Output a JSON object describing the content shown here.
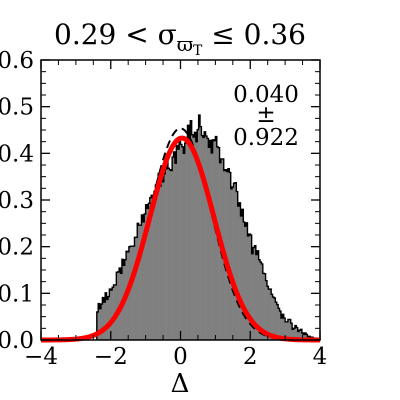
{
  "chart_data": {
    "type": "histogram",
    "title": "0.29 < σ_ϖT ≤ 0.36",
    "title_parts": {
      "prefix": "0.29 < σ",
      "sub": "ϖ",
      "subsub": "T",
      "suffix": " ≤ 0.36"
    },
    "xlabel": "Δ",
    "ylabel": "",
    "xlim": [
      -4,
      4
    ],
    "ylim": [
      0,
      0.6
    ],
    "x_ticks": [
      -4,
      -2,
      0,
      2,
      4
    ],
    "x_tick_labels": [
      "−4",
      "−2",
      "0",
      "2",
      "4"
    ],
    "y_ticks": [
      0.0,
      0.1,
      0.2,
      0.3,
      0.4,
      0.5,
      0.6
    ],
    "y_tick_labels": [
      "0.0",
      "0.1",
      "0.2",
      "0.3",
      "0.4",
      "0.5",
      "0.6"
    ],
    "grid": false,
    "annotation": {
      "mean": "0.040",
      "pm": "±",
      "sigma": "0.922",
      "placement": "top-right"
    },
    "histogram": {
      "name": "",
      "bin_edges_start": -2.4,
      "bin_width": 0.04,
      "values": [
        0.06,
        0.078,
        0.067,
        0.077,
        0.091,
        0.081,
        0.101,
        0.087,
        0.093,
        0.109,
        0.107,
        0.113,
        0.118,
        0.118,
        0.145,
        0.146,
        0.154,
        0.143,
        0.173,
        0.16,
        0.172,
        0.19,
        0.189,
        0.2,
        0.201,
        0.201,
        0.201,
        0.22,
        0.22,
        0.25,
        0.246,
        0.246,
        0.268,
        0.253,
        0.27,
        0.29,
        0.282,
        0.293,
        0.305,
        0.31,
        0.295,
        0.318,
        0.332,
        0.337,
        0.357,
        0.33,
        0.346,
        0.339,
        0.356,
        0.366,
        0.395,
        0.368,
        0.365,
        0.363,
        0.392,
        0.403,
        0.379,
        0.417,
        0.409,
        0.428,
        0.419,
        0.414,
        0.4,
        0.422,
        0.434,
        0.46,
        0.417,
        0.47,
        0.44,
        0.435,
        0.445,
        0.425,
        0.451,
        0.482,
        0.457,
        0.438,
        0.434,
        0.446,
        0.437,
        0.432,
        0.413,
        0.428,
        0.401,
        0.429,
        0.427,
        0.436,
        0.414,
        0.412,
        0.38,
        0.388,
        0.388,
        0.363,
        0.365,
        0.361,
        0.367,
        0.359,
        0.324,
        0.328,
        0.336,
        0.337,
        0.318,
        0.287,
        0.294,
        0.266,
        0.28,
        0.253,
        0.244,
        0.251,
        0.223,
        0.227,
        0.225,
        0.185,
        0.198,
        0.202,
        0.183,
        0.191,
        0.172,
        0.167,
        0.163,
        0.143,
        0.142,
        0.127,
        0.115,
        0.109,
        0.109,
        0.098,
        0.092,
        0.09,
        0.081,
        0.076,
        0.068,
        0.062,
        0.047,
        0.055,
        0.047,
        0.039,
        0.039,
        0.044,
        0.044,
        0.036,
        0.023,
        0.025,
        0.031,
        0.027,
        0.018,
        0.021,
        0.023,
        0.015,
        0.012,
        0.015,
        0.012,
        0.007,
        0.008,
        0.004,
        0.006,
        0.003,
        0.004,
        0.002,
        0.001,
        0.001
      ],
      "color": "#808080",
      "edge_color": "#000000"
    },
    "fit_curve": {
      "name": "",
      "type": "gaussian",
      "mean": 0.04,
      "sigma": 0.922,
      "color": "#ff0000"
    },
    "reference_curve": {
      "name": "",
      "type": "gaussian",
      "mean": 0.0,
      "sigma": 0.88,
      "style": "dashed",
      "color": "#000000"
    }
  }
}
